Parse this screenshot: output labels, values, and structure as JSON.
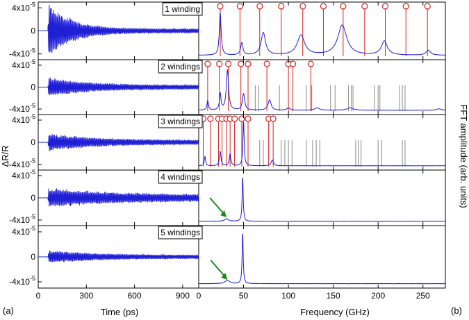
{
  "panel_labels": {
    "a": "(a)",
    "b": "(b)"
  },
  "colors": {
    "trace": "#1f1fd6",
    "marker": "#d62020",
    "gray": "#888888",
    "arrow": "#1a8a1a"
  },
  "chart_data": [
    {
      "type": "line",
      "id": "time-domain",
      "xlabel": "Time (ps)",
      "ylabel": "ΔR/R",
      "xlim": [
        0,
        1000
      ],
      "ylim": [
        -5e-05,
        5e-05
      ],
      "x_ticks": [
        0,
        300,
        600,
        900
      ],
      "x_tick_labels": [
        "0",
        "300",
        "600",
        "900"
      ],
      "y_ticks": [
        4e-05,
        0,
        -4e-05
      ],
      "y_tick_labels": [
        "4x10-5",
        "0",
        "-4x10-5"
      ],
      "y_tick_base": [
        "4x10",
        "0",
        "-4x10"
      ],
      "y_tick_exp": [
        "-5",
        "",
        "-5"
      ],
      "series": [
        {
          "name": "1 winding",
          "onset_ps": 60,
          "peak_amplitude": 5e-05,
          "decay_ps": 140,
          "residual": 4e-06
        },
        {
          "name": "2 windings",
          "onset_ps": 60,
          "peak_amplitude": 1.5e-05,
          "decay_ps": 250,
          "residual": 4e-06
        },
        {
          "name": "3 windings",
          "onset_ps": 60,
          "peak_amplitude": 1.3e-05,
          "decay_ps": 300,
          "residual": 4e-06
        },
        {
          "name": "4 windings",
          "onset_ps": 60,
          "peak_amplitude": 1.3e-05,
          "decay_ps": 400,
          "residual": 6e-06
        },
        {
          "name": "5 windings",
          "onset_ps": 60,
          "peak_amplitude": 8e-06,
          "decay_ps": 300,
          "residual": 3e-06
        }
      ]
    },
    {
      "type": "line",
      "id": "fft",
      "xlabel": "Frequency (GHz)",
      "ylabel": "FFT amplitude (arb. units)",
      "xlim": [
        0,
        275
      ],
      "x_ticks": [
        0,
        50,
        100,
        150,
        200,
        250
      ],
      "x_tick_labels": [
        "0",
        "50",
        "100",
        "150",
        "200",
        "250"
      ],
      "series": [
        {
          "name": "1 winding",
          "peaks": [
            [
              24,
              0.85,
              1.2
            ],
            [
              48,
              0.25,
              1.5
            ],
            [
              72,
              0.45,
              3
            ],
            [
              114,
              0.4,
              5
            ],
            [
              160,
              0.6,
              6
            ],
            [
              207,
              0.28,
              4
            ],
            [
              256,
              0.1,
              3
            ]
          ],
          "red_markers_ghz": [
            24,
            46,
            68,
            92,
            116,
            139,
            161,
            185,
            208,
            231,
            255
          ],
          "gray_lines_ghz": []
        },
        {
          "name": "2 windings",
          "peaks": [
            [
              10,
              0.2,
              1.0
            ],
            [
              24,
              0.35,
              1.0
            ],
            [
              32,
              0.85,
              1.5
            ],
            [
              50,
              0.35,
              1.5
            ],
            [
              79,
              0.22,
              2
            ],
            [
              100,
              0.05,
              2
            ],
            [
              132,
              0.05,
              3
            ],
            [
              169,
              0.05,
              4
            ],
            [
              268,
              0.03,
              3
            ]
          ],
          "red_markers_ghz": [
            10,
            23,
            33,
            47,
            55,
            76,
            100,
            105,
            125
          ],
          "gray_lines_ghz": [
            63,
            67,
            90,
            120,
            126,
            147,
            152,
            167,
            170,
            172,
            196,
            200,
            202,
            224,
            227,
            230
          ]
        },
        {
          "name": "3 windings",
          "peaks": [
            [
              7,
              0.2,
              0.8
            ],
            [
              24,
              0.3,
              1.0
            ],
            [
              35,
              0.25,
              1.0
            ],
            [
              50,
              0.95,
              0.8
            ],
            [
              82,
              0.12,
              1.5
            ]
          ],
          "red_markers_ghz": [
            5,
            13,
            22,
            26,
            31,
            35,
            40,
            48,
            55,
            78,
            83
          ],
          "gray_lines_ghz": [
            68,
            72,
            92,
            96,
            100,
            104,
            120,
            127,
            131,
            135,
            175,
            178,
            181,
            200,
            204,
            227,
            230
          ]
        },
        {
          "name": "4 windings",
          "peaks": [
            [
              31,
              0.05,
              2.5
            ],
            [
              49,
              0.95,
              0.7
            ]
          ],
          "red_markers_ghz": [],
          "gray_lines_ghz": [],
          "arrow_points_to_ghz": 31
        },
        {
          "name": "5 windings",
          "peaks": [
            [
              32,
              0.06,
              3
            ],
            [
              49,
              0.95,
              0.7
            ]
          ],
          "red_markers_ghz": [],
          "gray_lines_ghz": [],
          "arrow_points_to_ghz": 32
        }
      ]
    }
  ]
}
